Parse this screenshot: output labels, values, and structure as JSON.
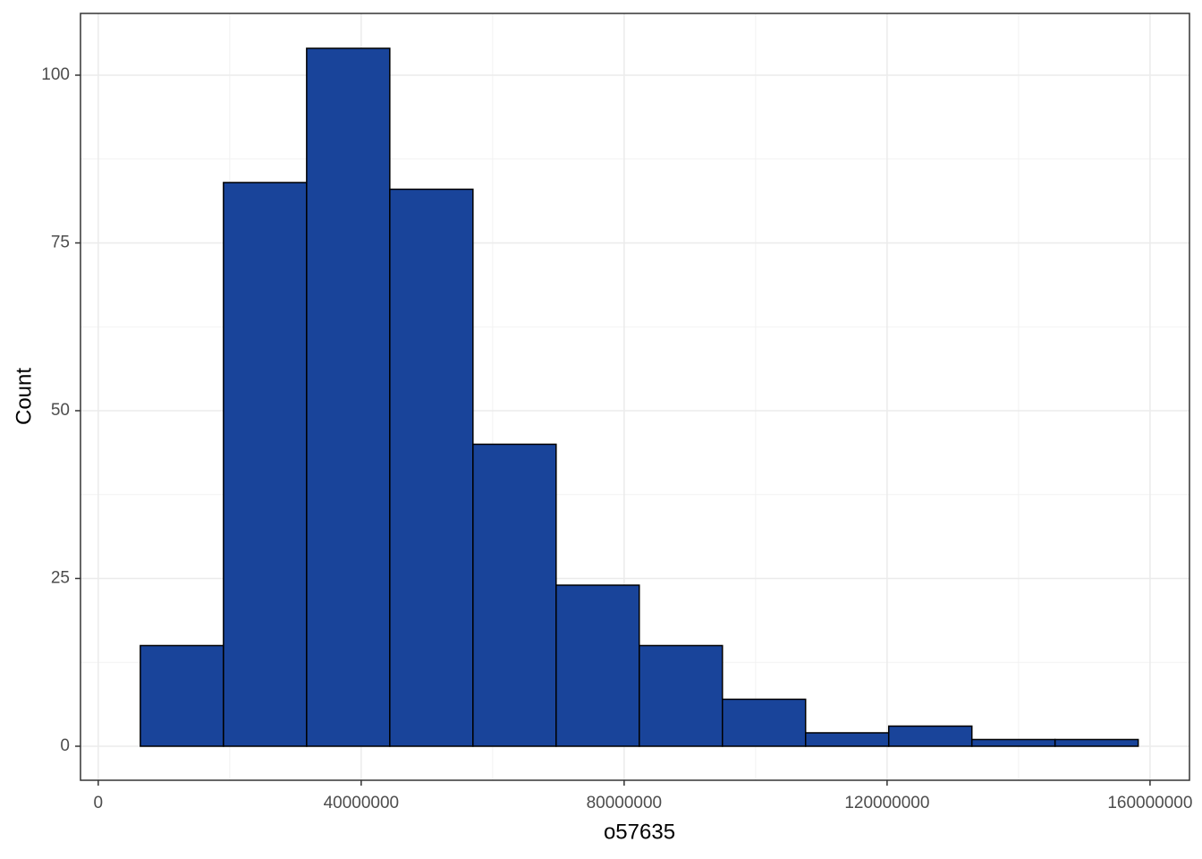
{
  "chart_data": {
    "type": "histogram",
    "x_label": "o57635",
    "y_label": "Count",
    "bins": [
      6400000,
      19050000,
      31700000,
      44350000,
      57000000,
      69650000,
      82300000,
      94950000,
      107600000,
      120250000,
      132900000,
      145550000,
      158200000
    ],
    "values": [
      15,
      84,
      104,
      83,
      45,
      24,
      15,
      7,
      2,
      3,
      1,
      1
    ],
    "color": "#19449a",
    "xlim": [
      -2700000,
      166000000
    ],
    "xticks": [
      0,
      40000000,
      80000000,
      120000000,
      160000000
    ],
    "ylim": [
      -5.07,
      109.2
    ],
    "yticks": [
      0,
      25,
      50,
      75,
      100
    ],
    "grid": true
  }
}
